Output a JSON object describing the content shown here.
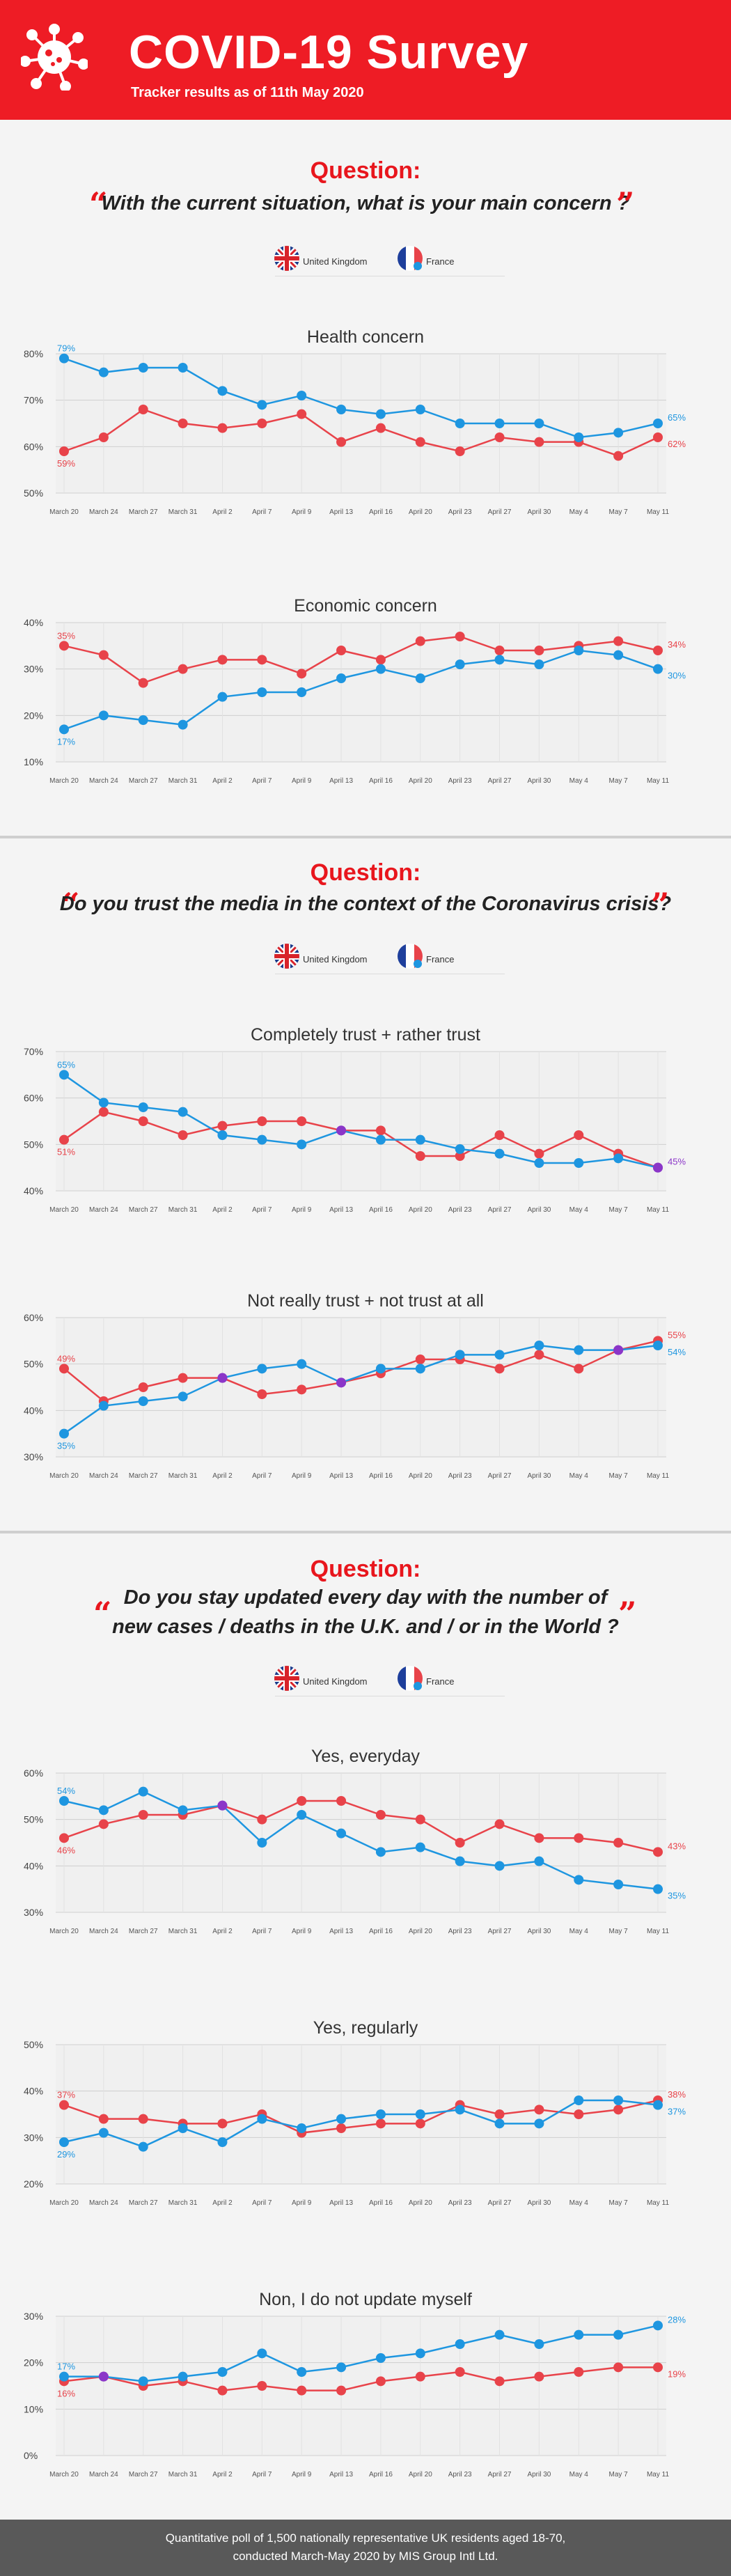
{
  "header": {
    "title": "COVID-19 Survey",
    "subtitle": "Tracker results as of 11th May 2020",
    "icon": "virus-icon"
  },
  "colors": {
    "uk": "#e8434a",
    "france": "#1e96e0",
    "overlap": "#8b36c8",
    "accent": "#ee1c25"
  },
  "legend": {
    "uk": "United Kingdom",
    "france": "France"
  },
  "sections": [
    {
      "label": "Question:",
      "question": [
        "With the current situation, what is your main concern ?"
      ]
    },
    {
      "label": "Question:",
      "question": [
        "Do you trust the media in the context of the Coronavirus crisis?"
      ]
    },
    {
      "label": "Question:",
      "question": [
        "Do you stay updated every day with the number of",
        "new cases / deaths in the U.K. and / or in the World ?"
      ]
    }
  ],
  "footer": {
    "line1": "Quantitative poll of 1,500 nationally representative UK residents aged 18-70,",
    "line2": "conducted March-May 2020 by MIS Group Intl Ltd."
  },
  "chart_data": [
    {
      "type": "line",
      "title": "Health concern",
      "x": [
        "March 20",
        "March 24",
        "March 27",
        "March 31",
        "April 2",
        "April 7",
        "April 9",
        "April 13",
        "April 16",
        "April 20",
        "April 23",
        "April 27",
        "April 30",
        "May 4",
        "May 7",
        "May 11"
      ],
      "ylim": [
        50,
        80
      ],
      "yticks": [
        50,
        60,
        70,
        80
      ],
      "grid": true,
      "series": [
        {
          "name": "United Kingdom",
          "values": [
            59,
            62,
            68,
            65,
            64,
            65,
            67,
            61,
            64,
            61,
            59,
            62,
            61,
            61,
            58,
            62
          ]
        },
        {
          "name": "France",
          "values": [
            79,
            76,
            77,
            77,
            72,
            69,
            71,
            68,
            67,
            68,
            65,
            65,
            65,
            62,
            63,
            65
          ]
        }
      ],
      "labels": {
        "uk_first": "59%",
        "uk_last": "62%",
        "fr_first": "79%",
        "fr_last": "65%"
      }
    },
    {
      "type": "line",
      "title": "Economic concern",
      "x": [
        "March 20",
        "March 24",
        "March 27",
        "March 31",
        "April 2",
        "April 7",
        "April 9",
        "April 13",
        "April 16",
        "April 20",
        "April 23",
        "April 27",
        "April 30",
        "May 4",
        "May 7",
        "May 11"
      ],
      "ylim": [
        10,
        40
      ],
      "yticks": [
        10,
        20,
        30,
        40
      ],
      "grid": true,
      "series": [
        {
          "name": "United Kingdom",
          "values": [
            35,
            33,
            27,
            30,
            32,
            32,
            29,
            34,
            32,
            36,
            37,
            34,
            34,
            35,
            36,
            34
          ]
        },
        {
          "name": "France",
          "values": [
            17,
            20,
            19,
            18,
            24,
            25,
            25,
            28,
            30,
            28,
            31,
            32,
            31,
            34,
            33,
            30
          ]
        }
      ],
      "labels": {
        "uk_first": "35%",
        "uk_last": "34%",
        "fr_first": "17%",
        "fr_last": "30%"
      }
    },
    {
      "type": "line",
      "title": "Completely trust + rather trust",
      "x": [
        "March 20",
        "March 24",
        "March 27",
        "March 31",
        "April 2",
        "April 7",
        "April 9",
        "April 13",
        "April 16",
        "April 20",
        "April 23",
        "April 27",
        "April 30",
        "May 4",
        "May 7",
        "May 11"
      ],
      "ylim": [
        40,
        70
      ],
      "yticks": [
        40,
        50,
        60,
        70
      ],
      "grid": true,
      "series": [
        {
          "name": "United Kingdom",
          "values": [
            51,
            57,
            55,
            52,
            54,
            55,
            55,
            53,
            53,
            47.5,
            47.5,
            52,
            48,
            52,
            48,
            45
          ]
        },
        {
          "name": "France",
          "values": [
            65,
            59,
            58,
            57,
            52,
            51,
            50,
            53,
            51,
            51,
            49,
            48,
            46,
            46,
            47,
            45
          ]
        }
      ],
      "labels": {
        "uk_first": "51%",
        "uk_last": "45%",
        "fr_first": "65%",
        "fr_last": "45%"
      }
    },
    {
      "type": "line",
      "title": "Not really trust + not trust at all",
      "x": [
        "March 20",
        "March 24",
        "March 27",
        "March 31",
        "April 2",
        "April 7",
        "April 9",
        "April 13",
        "April 16",
        "April 20",
        "April 23",
        "April 27",
        "April 30",
        "May 4",
        "May 7",
        "May 11"
      ],
      "ylim": [
        30,
        60
      ],
      "yticks": [
        30,
        40,
        50,
        60
      ],
      "grid": true,
      "series": [
        {
          "name": "United Kingdom",
          "values": [
            49,
            42,
            45,
            47,
            47,
            43.5,
            44.5,
            46,
            48,
            51,
            51,
            49,
            52,
            49,
            53,
            55
          ]
        },
        {
          "name": "France",
          "values": [
            35,
            41,
            42,
            43,
            47,
            49,
            50,
            46,
            49,
            49,
            52,
            52,
            54,
            53,
            53,
            54
          ]
        }
      ],
      "labels": {
        "uk_first": "49%",
        "uk_last": "55%",
        "fr_first": "35%",
        "fr_last": "54%"
      }
    },
    {
      "type": "line",
      "title": "Yes, everyday",
      "x": [
        "March 20",
        "March 24",
        "March 27",
        "March 31",
        "April 2",
        "April 7",
        "April 9",
        "April 13",
        "April 16",
        "April 20",
        "April 23",
        "April 27",
        "April 30",
        "May 4",
        "May 7",
        "May 11"
      ],
      "ylim": [
        30,
        60
      ],
      "yticks": [
        30,
        40,
        50,
        60
      ],
      "grid": true,
      "series": [
        {
          "name": "United Kingdom",
          "values": [
            46,
            49,
            51,
            51,
            53,
            50,
            54,
            54,
            51,
            50,
            45,
            49,
            46,
            46,
            45,
            43
          ]
        },
        {
          "name": "France",
          "values": [
            54,
            52,
            56,
            52,
            53,
            45,
            51,
            47,
            43,
            44,
            41,
            40,
            41,
            37,
            36,
            35
          ]
        }
      ],
      "labels": {
        "uk_first": "46%",
        "uk_last": "43%",
        "fr_first": "54%",
        "fr_last": "35%"
      }
    },
    {
      "type": "line",
      "title": "Yes, regularly",
      "x": [
        "March 20",
        "March 24",
        "March 27",
        "March 31",
        "April 2",
        "April 7",
        "April 9",
        "April 13",
        "April 16",
        "April 20",
        "April 23",
        "April 27",
        "April 30",
        "May 4",
        "May 7",
        "May 11"
      ],
      "ylim": [
        20,
        50
      ],
      "yticks": [
        20,
        30,
        40,
        50
      ],
      "grid": true,
      "series": [
        {
          "name": "United Kingdom",
          "values": [
            37,
            34,
            34,
            33,
            33,
            35,
            31,
            32,
            33,
            33,
            37,
            35,
            36,
            35,
            36,
            38
          ]
        },
        {
          "name": "France",
          "values": [
            29,
            31,
            28,
            32,
            29,
            34,
            32,
            34,
            35,
            35,
            36,
            33,
            33,
            38,
            38,
            37
          ]
        }
      ],
      "labels": {
        "uk_first": "37%",
        "uk_last": "38%",
        "fr_first": "29%",
        "fr_last": "37%"
      }
    },
    {
      "type": "line",
      "title": "Non, I do not update myself",
      "x": [
        "March 20",
        "March 24",
        "March 27",
        "March 31",
        "April 2",
        "April 7",
        "April 9",
        "April 13",
        "April 16",
        "April 20",
        "April 23",
        "April 27",
        "April 30",
        "May 4",
        "May 7",
        "May 11"
      ],
      "ylim": [
        0,
        30
      ],
      "yticks": [
        0,
        10,
        20,
        30
      ],
      "grid": true,
      "series": [
        {
          "name": "United Kingdom",
          "values": [
            16,
            17,
            15,
            16,
            14,
            15,
            14,
            14,
            16,
            17,
            18,
            16,
            17,
            18,
            19,
            19
          ]
        },
        {
          "name": "France",
          "values": [
            17,
            17,
            16,
            17,
            18,
            22,
            18,
            19,
            21,
            22,
            24,
            26,
            24,
            26,
            26,
            28
          ]
        }
      ],
      "labels": {
        "uk_first": "16%",
        "uk_last": "19%",
        "fr_first": "17%",
        "fr_last": "28%"
      }
    }
  ]
}
